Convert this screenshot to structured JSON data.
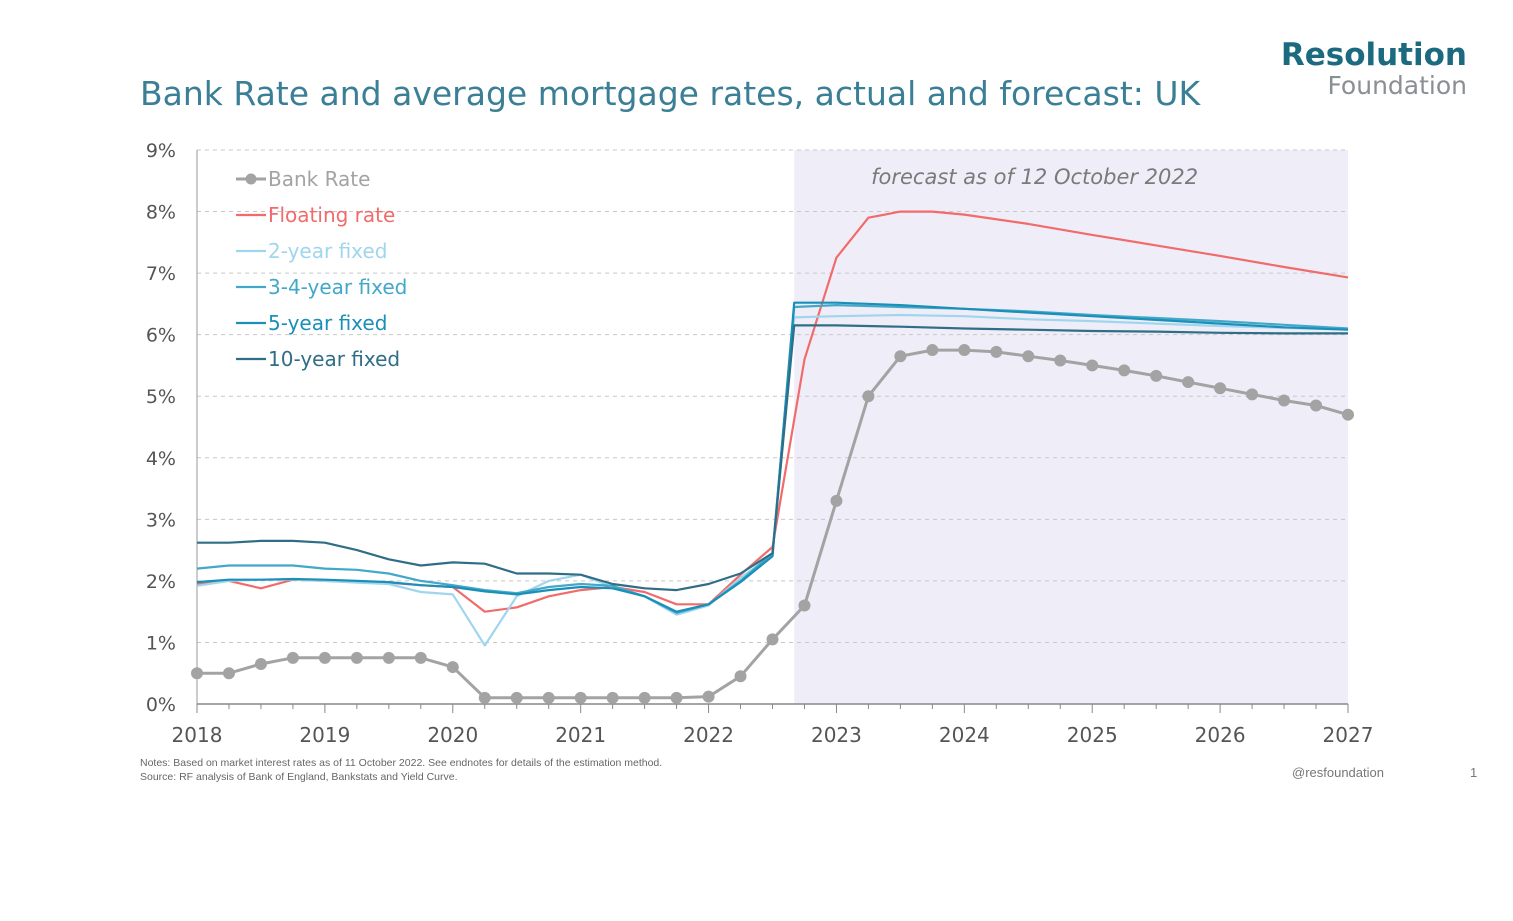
{
  "title": "Bank Rate and average mortgage rates, actual and forecast: UK",
  "logo": {
    "line1": "Resolution",
    "line2": "Foundation"
  },
  "notes": {
    "line1": "Notes: Based on market interest rates as of 11 October 2022. See endnotes for details of the estimation method.",
    "line2": "Source: RF analysis of Bank of England, Bankstats and Yield Curve."
  },
  "footer": {
    "handle": "@resfoundation",
    "page": "1"
  },
  "chart_data": {
    "type": "line",
    "title": "Bank Rate and average mortgage rates, actual and forecast: UK",
    "xlim": [
      2018,
      2027
    ],
    "ylim": [
      0,
      9
    ],
    "x_ticks": [
      {
        "value": 2018,
        "label": "2018"
      },
      {
        "value": 2019,
        "label": "2019"
      },
      {
        "value": 2020,
        "label": "2020"
      },
      {
        "value": 2021,
        "label": "2021"
      },
      {
        "value": 2022,
        "label": "2022"
      },
      {
        "value": 2023,
        "label": "2023"
      },
      {
        "value": 2024,
        "label": "2024"
      },
      {
        "value": 2025,
        "label": "2025"
      },
      {
        "value": 2026,
        "label": "2026"
      },
      {
        "value": 2027,
        "label": "2027"
      }
    ],
    "y_ticks": [
      {
        "value": 0,
        "label": "0%"
      },
      {
        "value": 1,
        "label": "1%"
      },
      {
        "value": 2,
        "label": "2%"
      },
      {
        "value": 3,
        "label": "3%"
      },
      {
        "value": 4,
        "label": "4%"
      },
      {
        "value": 5,
        "label": "5%"
      },
      {
        "value": 6,
        "label": "6%"
      },
      {
        "value": 7,
        "label": "7%"
      },
      {
        "value": 8,
        "label": "8%"
      },
      {
        "value": 9,
        "label": "9%"
      }
    ],
    "grid": "horizontal dashed",
    "legend_position": "top-left",
    "forecast_region": {
      "start": 2022.67,
      "end": 2027,
      "label": "forecast as of 12 October 2022",
      "color": "#efeef8"
    },
    "series": [
      {
        "name": "Bank Rate",
        "color": "#a3a3a3",
        "markers": true,
        "x": [
          2018.0,
          2018.25,
          2018.5,
          2018.75,
          2019.0,
          2019.25,
          2019.5,
          2019.75,
          2020.0,
          2020.25,
          2020.5,
          2020.75,
          2021.0,
          2021.25,
          2021.5,
          2021.75,
          2022.0,
          2022.25,
          2022.5,
          2022.75,
          2023.0,
          2023.25,
          2023.5,
          2023.75,
          2024.0,
          2024.25,
          2024.5,
          2024.75,
          2025.0,
          2025.25,
          2025.5,
          2025.75,
          2026.0,
          2026.25,
          2026.5,
          2026.75,
          2027.0
        ],
        "y": [
          0.5,
          0.5,
          0.65,
          0.75,
          0.75,
          0.75,
          0.75,
          0.75,
          0.6,
          0.1,
          0.1,
          0.1,
          0.1,
          0.1,
          0.1,
          0.1,
          0.12,
          0.45,
          1.05,
          1.6,
          3.3,
          5.0,
          5.65,
          5.75,
          5.75,
          5.72,
          5.65,
          5.58,
          5.5,
          5.42,
          5.33,
          5.23,
          5.13,
          5.03,
          4.93,
          4.85,
          4.7
        ]
      },
      {
        "name": "Floating rate",
        "color": "#f26b6b",
        "markers": false,
        "x": [
          2018.0,
          2018.25,
          2018.5,
          2018.75,
          2019.0,
          2019.25,
          2019.5,
          2019.75,
          2020.0,
          2020.25,
          2020.5,
          2020.75,
          2021.0,
          2021.25,
          2021.5,
          2021.75,
          2022.0,
          2022.25,
          2022.5,
          2022.75,
          2023.0,
          2023.25,
          2023.5,
          2023.75,
          2024.0,
          2024.5,
          2025.0,
          2025.5,
          2026.0,
          2026.5,
          2027.0
        ],
        "y": [
          1.95,
          2.0,
          1.88,
          2.02,
          2.0,
          1.98,
          1.97,
          1.93,
          1.9,
          1.5,
          1.57,
          1.75,
          1.85,
          1.9,
          1.82,
          1.62,
          1.62,
          2.1,
          2.55,
          5.6,
          7.25,
          7.9,
          8.0,
          8.0,
          7.95,
          7.8,
          7.62,
          7.45,
          7.28,
          7.1,
          6.93
        ]
      },
      {
        "name": "2-year fixed",
        "color": "#9fd6ee",
        "markers": false,
        "x": [
          2018.0,
          2018.25,
          2018.5,
          2018.75,
          2019.0,
          2019.25,
          2019.5,
          2019.75,
          2020.0,
          2020.25,
          2020.5,
          2020.75,
          2021.0,
          2021.25,
          2021.5,
          2021.75,
          2022.0,
          2022.25,
          2022.5,
          2022.67,
          2023.0,
          2023.5,
          2024.0,
          2024.5,
          2025.0,
          2025.5,
          2026.0,
          2026.5,
          2027.0
        ],
        "y": [
          1.92,
          2.0,
          2.02,
          2.02,
          2.0,
          1.97,
          1.95,
          1.82,
          1.78,
          0.95,
          1.75,
          2.0,
          2.1,
          1.9,
          1.75,
          1.45,
          1.6,
          2.05,
          2.42,
          6.28,
          6.3,
          6.32,
          6.3,
          6.25,
          6.22,
          6.18,
          6.14,
          6.11,
          6.08
        ]
      },
      {
        "name": "3-4-year fixed",
        "color": "#42a8c9",
        "markers": false,
        "x": [
          2018.0,
          2018.25,
          2018.5,
          2018.75,
          2019.0,
          2019.25,
          2019.5,
          2019.75,
          2020.0,
          2020.25,
          2020.5,
          2020.75,
          2021.0,
          2021.25,
          2021.5,
          2021.75,
          2022.0,
          2022.25,
          2022.5,
          2022.67,
          2023.0,
          2023.5,
          2024.0,
          2024.5,
          2025.0,
          2025.5,
          2026.0,
          2026.5,
          2027.0
        ],
        "y": [
          2.2,
          2.25,
          2.25,
          2.25,
          2.2,
          2.18,
          2.12,
          2.0,
          1.93,
          1.85,
          1.8,
          1.9,
          1.95,
          1.92,
          1.75,
          1.48,
          1.62,
          2.0,
          2.45,
          6.45,
          6.48,
          6.45,
          6.42,
          6.38,
          6.32,
          6.27,
          6.22,
          6.16,
          6.1
        ]
      },
      {
        "name": "5-year fixed",
        "color": "#1a8fb8",
        "markers": false,
        "x": [
          2018.0,
          2018.25,
          2018.5,
          2018.75,
          2019.0,
          2019.25,
          2019.5,
          2019.75,
          2020.0,
          2020.25,
          2020.5,
          2020.75,
          2021.0,
          2021.25,
          2021.5,
          2021.75,
          2022.0,
          2022.25,
          2022.5,
          2022.67,
          2023.0,
          2023.5,
          2024.0,
          2024.5,
          2025.0,
          2025.5,
          2026.0,
          2026.5,
          2027.0
        ],
        "y": [
          1.98,
          2.02,
          2.02,
          2.03,
          2.02,
          2.0,
          1.98,
          1.93,
          1.9,
          1.83,
          1.78,
          1.85,
          1.9,
          1.88,
          1.75,
          1.5,
          1.62,
          1.98,
          2.4,
          6.52,
          6.52,
          6.48,
          6.42,
          6.36,
          6.3,
          6.24,
          6.18,
          6.12,
          6.08
        ]
      },
      {
        "name": "10-year fixed",
        "color": "#2f6e86",
        "markers": false,
        "x": [
          2018.0,
          2018.25,
          2018.5,
          2018.75,
          2019.0,
          2019.25,
          2019.5,
          2019.75,
          2020.0,
          2020.25,
          2020.5,
          2020.75,
          2021.0,
          2021.25,
          2021.5,
          2021.75,
          2022.0,
          2022.25,
          2022.5,
          2022.67,
          2023.0,
          2023.5,
          2024.0,
          2024.5,
          2025.0,
          2025.5,
          2026.0,
          2026.5,
          2027.0
        ],
        "y": [
          2.62,
          2.62,
          2.65,
          2.65,
          2.62,
          2.5,
          2.35,
          2.25,
          2.3,
          2.28,
          2.12,
          2.12,
          2.1,
          1.95,
          1.88,
          1.85,
          1.95,
          2.12,
          2.45,
          6.15,
          6.15,
          6.13,
          6.1,
          6.08,
          6.06,
          6.05,
          6.03,
          6.02,
          6.02
        ]
      }
    ]
  }
}
